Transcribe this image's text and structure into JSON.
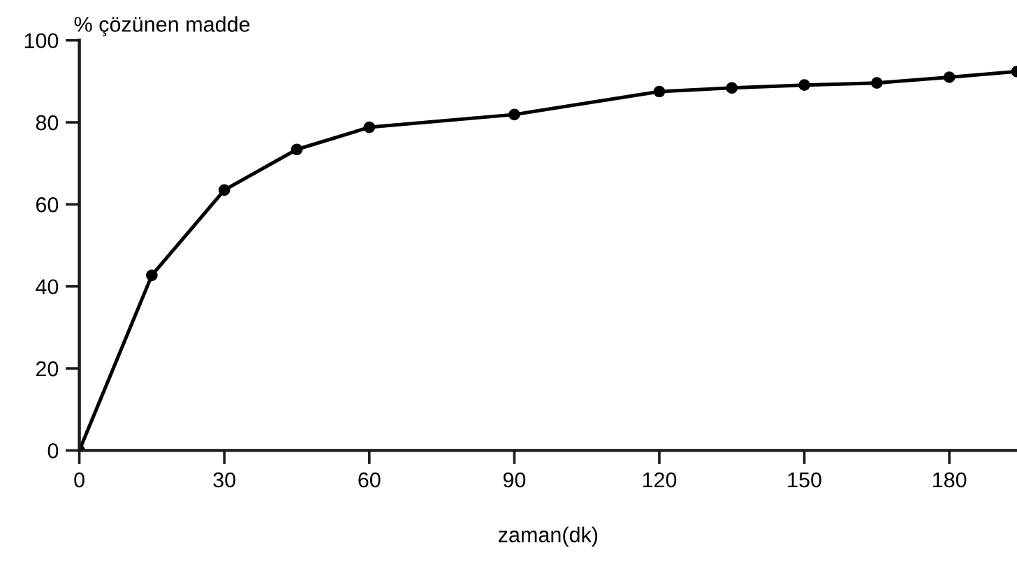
{
  "chart_data": {
    "type": "line",
    "xlabel": "zaman(dk)",
    "ylabel": "% çözünen madde",
    "x": [
      0,
      15,
      30,
      45,
      60,
      90,
      120,
      135,
      150,
      165,
      180,
      194
    ],
    "series": [
      {
        "color": "#000000",
        "values": [
          0,
          42.7,
          63.5,
          73.4,
          78.8,
          81.9,
          87.5,
          88.4,
          89.1,
          89.6,
          91.0,
          92.4
        ]
      }
    ],
    "xlim": [
      0,
      194
    ],
    "ylim": [
      0,
      100
    ],
    "xticks": [
      0,
      30,
      60,
      90,
      120,
      150,
      180
    ],
    "yticks": [
      0,
      20,
      40,
      60,
      80,
      100
    ],
    "grid": false,
    "marker": "circle",
    "line_style": "solid"
  }
}
